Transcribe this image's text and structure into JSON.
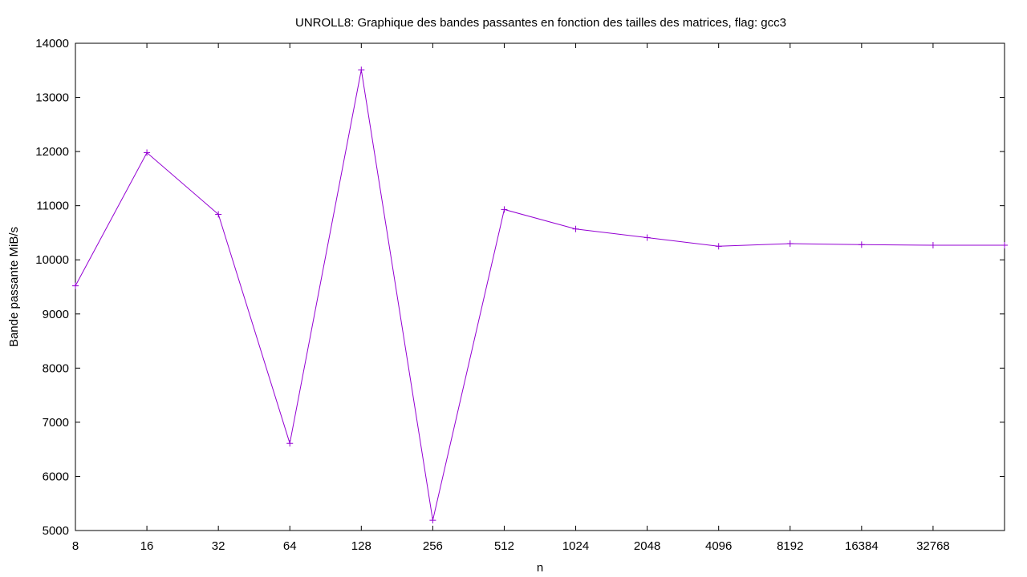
{
  "chart_data": {
    "type": "line",
    "title": "UNROLL8: Graphique des bandes passantes en fonction des tailles des matrices, flag: gcc3",
    "xlabel": "n",
    "ylabel": "Bande passante MiB/s",
    "x_scale": "log2",
    "x_ticks": [
      "8",
      "16",
      "32",
      "64",
      "128",
      "256",
      "512",
      "1024",
      "2048",
      "4096",
      "8192",
      "16384",
      "32768"
    ],
    "x": [
      8,
      16,
      32,
      64,
      128,
      256,
      512,
      1024,
      2048,
      4096,
      8192,
      16384,
      32768,
      65536
    ],
    "y_ticks": [
      "5000",
      "6000",
      "7000",
      "8000",
      "9000",
      "10000",
      "11000",
      "12000",
      "13000",
      "14000"
    ],
    "ylim": [
      5000,
      14000
    ],
    "grid": false,
    "legend": "none",
    "series": [
      {
        "name": "",
        "color": "#9400d3",
        "marker": "plus",
        "values": [
          9520,
          11980,
          10840,
          6610,
          13510,
          5190,
          10930,
          10570,
          10410,
          10250,
          10300,
          10280,
          10270,
          10270
        ]
      }
    ]
  }
}
